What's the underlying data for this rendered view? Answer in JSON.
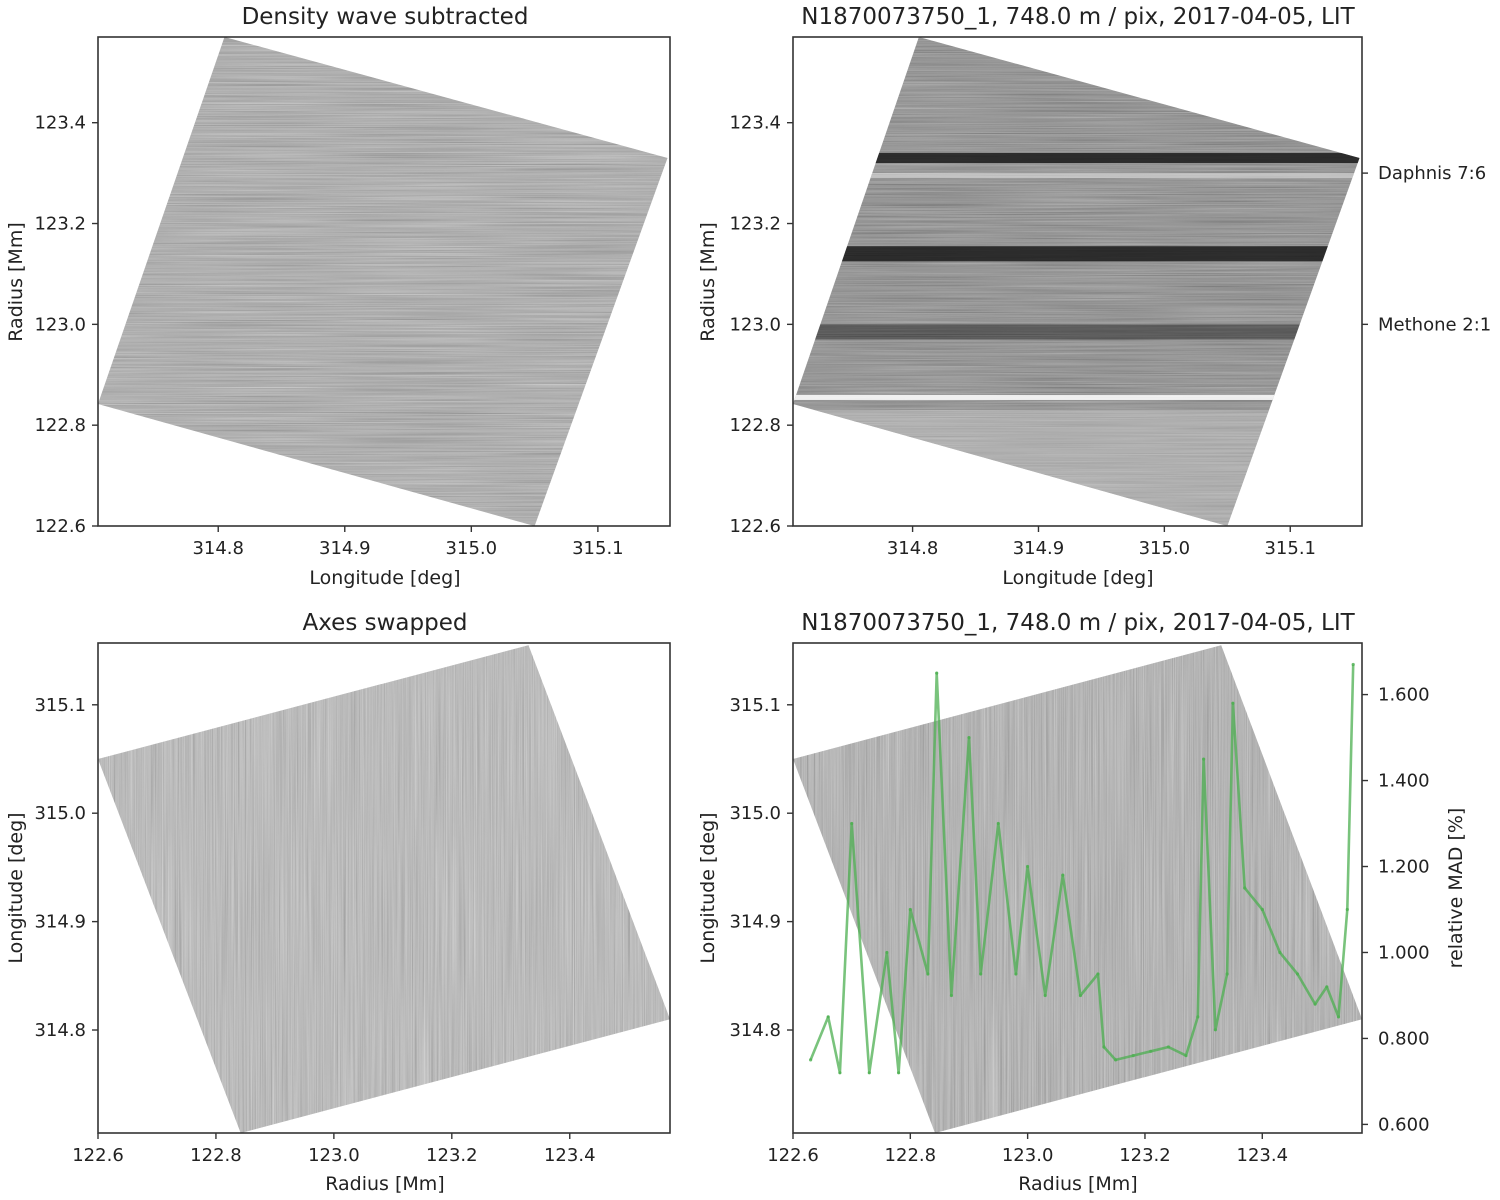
{
  "chart_data": [
    {
      "type": "heatmap",
      "title": "Density wave subtracted",
      "xlabel": "Longitude [deg]",
      "ylabel": "Radius [Mm]",
      "xlim": [
        314.705,
        315.157
      ],
      "ylim": [
        122.6,
        123.57
      ],
      "x_ticks": [
        "314.8",
        "314.9",
        "315.0",
        "315.1"
      ],
      "y_ticks": [
        "122.6",
        "122.8",
        "123.0",
        "123.2",
        "123.4"
      ],
      "image_corners": [
        [
          314.805,
          123.57
        ],
        [
          315.155,
          123.33
        ],
        [
          315.05,
          122.6
        ],
        [
          314.705,
          122.842
        ]
      ],
      "colormap": "gray"
    },
    {
      "type": "heatmap",
      "title": "N1870073750_1, 748.0 m / pix, 2017-04-05, LIT",
      "xlabel": "Longitude [deg]",
      "ylabel": "Radius [Mm]",
      "xlim": [
        314.705,
        315.157
      ],
      "ylim": [
        122.6,
        123.57
      ],
      "x_ticks": [
        "314.8",
        "314.9",
        "315.0",
        "315.1"
      ],
      "y_ticks": [
        "122.6",
        "122.8",
        "123.0",
        "123.2",
        "123.4"
      ],
      "right_axis_annotations": [
        {
          "label": "Daphnis 7:6",
          "radius": 123.3
        },
        {
          "label": "Methone 2:1",
          "radius": 123.0
        }
      ],
      "image_corners": [
        [
          314.805,
          123.57
        ],
        [
          315.155,
          123.33
        ],
        [
          315.05,
          122.6
        ],
        [
          314.705,
          122.842
        ]
      ],
      "colormap": "gray"
    },
    {
      "type": "heatmap",
      "title": "Axes swapped",
      "xlabel": "Radius [Mm]",
      "ylabel": "Longitude [deg]",
      "xlim": [
        122.6,
        123.57
      ],
      "ylim": [
        314.705,
        315.157
      ],
      "x_ticks": [
        "122.6",
        "122.8",
        "123.0",
        "123.2",
        "123.4"
      ],
      "y_ticks": [
        "314.8",
        "314.9",
        "315.0",
        "315.1"
      ],
      "image_corners": [
        [
          122.6,
          315.05
        ],
        [
          123.33,
          315.155
        ],
        [
          123.57,
          314.81
        ],
        [
          122.842,
          314.705
        ]
      ],
      "colormap": "gray"
    },
    {
      "type": "line",
      "title": "N1870073750_1, 748.0 m / pix, 2017-04-05, LIT",
      "xlabel": "Radius [Mm]",
      "ylabel": "Longitude [deg]",
      "y2label": "relative MAD [%]",
      "xlim": [
        122.6,
        123.57
      ],
      "ylim": [
        314.705,
        315.157
      ],
      "y2lim": [
        0.58,
        1.72
      ],
      "x_ticks": [
        "122.6",
        "122.8",
        "123.0",
        "123.2",
        "123.4"
      ],
      "y_ticks": [
        "314.8",
        "314.9",
        "315.0",
        "315.1"
      ],
      "y2_ticks": [
        "0.600",
        "0.800",
        "1.000",
        "1.200",
        "1.400",
        "1.600"
      ],
      "image_corners": [
        [
          122.6,
          315.05
        ],
        [
          123.33,
          315.155
        ],
        [
          123.57,
          314.81
        ],
        [
          122.842,
          314.705
        ]
      ],
      "series_color": "#4caf50",
      "x": [
        122.63,
        122.66,
        122.68,
        122.7,
        122.73,
        122.76,
        122.78,
        122.8,
        122.83,
        122.845,
        122.87,
        122.9,
        122.92,
        122.95,
        122.98,
        123.0,
        123.03,
        123.06,
        123.09,
        123.12,
        123.13,
        123.15,
        123.18,
        123.21,
        123.24,
        123.27,
        123.29,
        123.3,
        123.32,
        123.34,
        123.35,
        123.37,
        123.4,
        123.43,
        123.46,
        123.49,
        123.51,
        123.53,
        123.545,
        123.555
      ],
      "values": [
        0.75,
        0.85,
        0.72,
        1.3,
        0.72,
        1.0,
        0.72,
        1.1,
        0.95,
        1.65,
        0.9,
        1.5,
        0.95,
        1.3,
        0.95,
        1.2,
        0.9,
        1.18,
        0.9,
        0.95,
        0.78,
        0.75,
        0.76,
        0.77,
        0.78,
        0.76,
        0.85,
        1.45,
        0.82,
        0.95,
        1.58,
        1.15,
        1.1,
        1.0,
        0.95,
        0.88,
        0.92,
        0.85,
        1.1,
        1.67
      ]
    }
  ]
}
